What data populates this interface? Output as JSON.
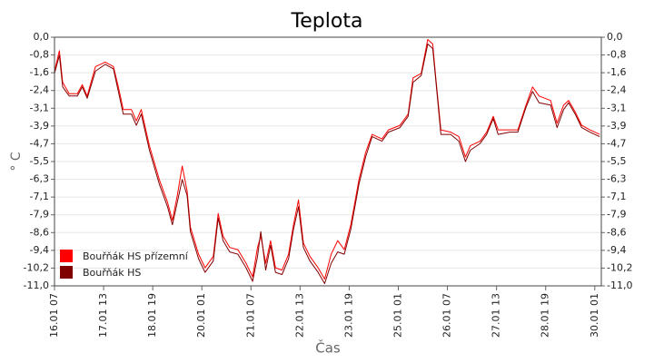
{
  "chart_data": {
    "type": "line",
    "title": "Teplota",
    "ylabel": "° C",
    "xlabel": "Čas",
    "x": [
      "16.01 07",
      "16.01 10",
      "16.01 12",
      "16.01 16",
      "16.01 21",
      "17.01 00",
      "17.01 03",
      "17.01 08",
      "17.01 14",
      "17.01 19",
      "17.01 22",
      "18.01 01",
      "18.01 06",
      "18.01 09",
      "18.01 12",
      "18.01 17",
      "18.01 23",
      "19.01 04",
      "19.01 07",
      "19.01 10",
      "19.01 13",
      "19.01 16",
      "19.01 18",
      "19.01 23",
      "20.01 03",
      "20.01 08",
      "20.01 11",
      "20.01 14",
      "20.01 18",
      "20.01 23",
      "21.01 04",
      "21.01 08",
      "21.01 11",
      "21.01 13",
      "21.01 16",
      "21.01 19",
      "21.01 22",
      "22.01 02",
      "22.01 06",
      "22.01 09",
      "22.01 12",
      "22.01 15",
      "22.01 19",
      "23.01 00",
      "23.01 04",
      "23.01 08",
      "23.01 12",
      "23.01 16",
      "23.01 20",
      "24.01 01",
      "24.01 05",
      "24.01 09",
      "24.01 15",
      "24.01 19",
      "25.01 02",
      "25.01 07",
      "25.01 10",
      "25.01 15",
      "25.01 19",
      "25.01 22",
      "26.01 00",
      "26.01 03",
      "26.01 09",
      "26.01 14",
      "26.01 18",
      "26.01 21",
      "27.01 03",
      "27.01 07",
      "27.01 11",
      "27.01 14",
      "27.01 21",
      "28.01 02",
      "28.01 07",
      "28.01 11",
      "28.01 15",
      "28.01 22",
      "29.01 02",
      "29.01 06",
      "29.01 09",
      "29.01 13",
      "29.01 17",
      "29.01 22",
      "30.01 04"
    ],
    "series": [
      {
        "name": "Bouřňák HS přízemní",
        "color": "#ff0000",
        "values": [
          -1.5,
          -0.6,
          -2.0,
          -2.5,
          -2.5,
          -2.1,
          -2.6,
          -1.3,
          -1.1,
          -1.3,
          -2.2,
          -3.2,
          -3.2,
          -3.7,
          -3.2,
          -4.8,
          -6.3,
          -7.3,
          -8.1,
          -7.0,
          -5.7,
          -6.8,
          -8.4,
          -9.6,
          -10.2,
          -9.7,
          -7.8,
          -8.8,
          -9.3,
          -9.4,
          -10.0,
          -10.6,
          -9.3,
          -8.8,
          -10.0,
          -9.0,
          -10.2,
          -10.3,
          -9.6,
          -8.3,
          -7.2,
          -9.1,
          -9.7,
          -10.2,
          -10.7,
          -9.6,
          -9.0,
          -9.4,
          -8.3,
          -6.3,
          -5.1,
          -4.3,
          -4.5,
          -4.1,
          -3.9,
          -3.4,
          -1.8,
          -1.6,
          -0.1,
          -0.3,
          -1.9,
          -4.1,
          -4.2,
          -4.4,
          -5.3,
          -4.8,
          -4.6,
          -4.2,
          -3.5,
          -4.1,
          -4.1,
          -4.1,
          -3.0,
          -2.2,
          -2.6,
          -2.8,
          -3.8,
          -3.0,
          -2.8,
          -3.3,
          -3.9,
          -4.1,
          -4.3
        ]
      },
      {
        "name": "Bouřňák HS",
        "color": "#800000",
        "values": [
          -1.6,
          -0.8,
          -2.2,
          -2.6,
          -2.6,
          -2.2,
          -2.7,
          -1.5,
          -1.2,
          -1.4,
          -2.4,
          -3.4,
          -3.4,
          -3.9,
          -3.4,
          -5.0,
          -6.5,
          -7.5,
          -8.3,
          -7.3,
          -6.3,
          -7.0,
          -8.6,
          -9.8,
          -10.4,
          -9.9,
          -8.0,
          -9.0,
          -9.5,
          -9.6,
          -10.2,
          -10.8,
          -9.7,
          -8.6,
          -10.3,
          -9.2,
          -10.4,
          -10.5,
          -9.8,
          -8.5,
          -7.5,
          -9.3,
          -9.9,
          -10.4,
          -10.9,
          -10.0,
          -9.5,
          -9.6,
          -8.5,
          -6.5,
          -5.3,
          -4.4,
          -4.6,
          -4.2,
          -4.0,
          -3.5,
          -2.0,
          -1.7,
          -0.3,
          -0.5,
          -2.0,
          -4.3,
          -4.3,
          -4.6,
          -5.5,
          -5.0,
          -4.7,
          -4.3,
          -3.6,
          -4.3,
          -4.2,
          -4.2,
          -3.1,
          -2.4,
          -2.9,
          -3.0,
          -4.0,
          -3.2,
          -2.9,
          -3.4,
          -4.0,
          -4.2,
          -4.4
        ]
      }
    ],
    "xlim": [
      "16.01 07",
      "30.01 05"
    ],
    "xticks": [
      "16.01 07",
      "17.01 13",
      "18.01 19",
      "20.01 01",
      "21.01 07",
      "22.01 13",
      "23.01 19",
      "25.01 01",
      "26.01 07",
      "27.01 13",
      "28.01 19",
      "30.01 01"
    ],
    "ylim": [
      -11,
      0
    ],
    "yticks": [
      {
        "value": 0,
        "label": "0,0"
      },
      {
        "value": -0.786,
        "label": "-0,8"
      },
      {
        "value": -1.571,
        "label": "-1,6"
      },
      {
        "value": -2.357,
        "label": "-2,4"
      },
      {
        "value": -3.143,
        "label": "-3,1"
      },
      {
        "value": -3.929,
        "label": "-3,9"
      },
      {
        "value": -4.714,
        "label": "-4,7"
      },
      {
        "value": -5.5,
        "label": "-5,5"
      },
      {
        "value": -6.286,
        "label": "-6,3"
      },
      {
        "value": -7.071,
        "label": "-7,1"
      },
      {
        "value": -7.857,
        "label": "-7,9"
      },
      {
        "value": -8.643,
        "label": "-8,6"
      },
      {
        "value": -9.429,
        "label": "-9,4"
      },
      {
        "value": -10.214,
        "label": "-10,2"
      },
      {
        "value": -11,
        "label": "-11,0"
      }
    ],
    "grid": true,
    "legend": "lower left"
  }
}
